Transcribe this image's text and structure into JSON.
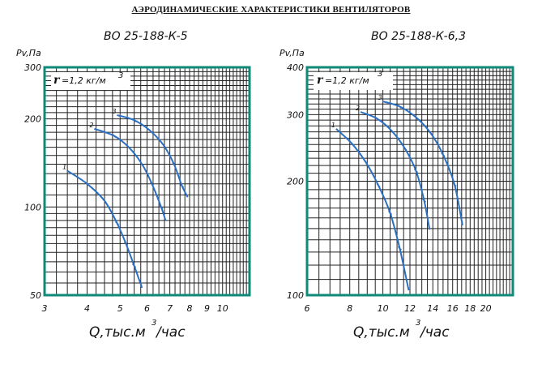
{
  "page_title": "АЭРОДИНАМИЧЕСКИЕ ХАРАКТЕРИСТИКИ ВЕНТИЛЯТОРОВ",
  "chart_data": [
    {
      "type": "line",
      "title": "ВО 25-188-К-5",
      "ylabel": "Pv,Па",
      "xlabel": "Q,тыс.м",
      "xlabel_sup": "3",
      "xlabel_suffix": "/час",
      "density_label": "=1,2 кг/м",
      "density_symbol": "r",
      "density_sup": "3",
      "x_scale": "log",
      "y_scale": "log",
      "xlim": [
        3,
        12
      ],
      "ylim": [
        50,
        300
      ],
      "grid": true,
      "x_tick_labels": [
        "3",
        "4",
        "5",
        "6",
        "7",
        "8",
        "9",
        "10"
      ],
      "y_tick_labels": [
        "300",
        "200",
        "100",
        "50"
      ],
      "series": [
        {
          "name": "1",
          "x": [
            3.5,
            4.0,
            4.5,
            4.9,
            5.2,
            5.5,
            5.8
          ],
          "y": [
            133,
            120,
            105,
            88,
            75,
            63,
            53
          ]
        },
        {
          "name": "2",
          "x": [
            4.2,
            4.8,
            5.3,
            5.8,
            6.2,
            6.6,
            6.8
          ],
          "y": [
            185,
            175,
            160,
            140,
            120,
            100,
            90
          ]
        },
        {
          "name": "3",
          "x": [
            4.9,
            5.5,
            6.1,
            6.7,
            7.2,
            7.6,
            7.9
          ],
          "y": [
            206,
            198,
            183,
            163,
            140,
            118,
            108
          ]
        }
      ]
    },
    {
      "type": "line",
      "title": "ВО 25-188-К-6,3",
      "ylabel": "Pv,Па",
      "xlabel": "Q,тыс.м",
      "xlabel_sup": "3",
      "xlabel_suffix": "/час",
      "density_label": "=1,2 кг/м",
      "density_symbol": "r",
      "density_sup": "3",
      "x_scale": "log",
      "y_scale": "log",
      "xlim": [
        6,
        24
      ],
      "ylim": [
        100,
        400
      ],
      "grid": true,
      "x_tick_labels": [
        "6",
        "8",
        "10",
        "12",
        "14",
        "16",
        "18",
        "20"
      ],
      "y_tick_labels": [
        "400",
        "300",
        "200",
        "100"
      ],
      "series": [
        {
          "name": "1",
          "x": [
            7.3,
            8.1,
            8.9,
            9.7,
            10.5,
            11.2,
            11.9
          ],
          "y": [
            275,
            252,
            225,
            195,
            165,
            133,
            103
          ]
        },
        {
          "name": "2",
          "x": [
            8.6,
            9.6,
            10.6,
            11.6,
            12.5,
            13.2,
            13.7
          ],
          "y": [
            305,
            293,
            272,
            244,
            213,
            178,
            149
          ]
        },
        {
          "name": "3",
          "x": [
            10.0,
            11.2,
            12.5,
            13.8,
            15.0,
            16.2,
            17.1
          ],
          "y": [
            325,
            315,
            295,
            268,
            235,
            196,
            153
          ]
        }
      ]
    }
  ]
}
